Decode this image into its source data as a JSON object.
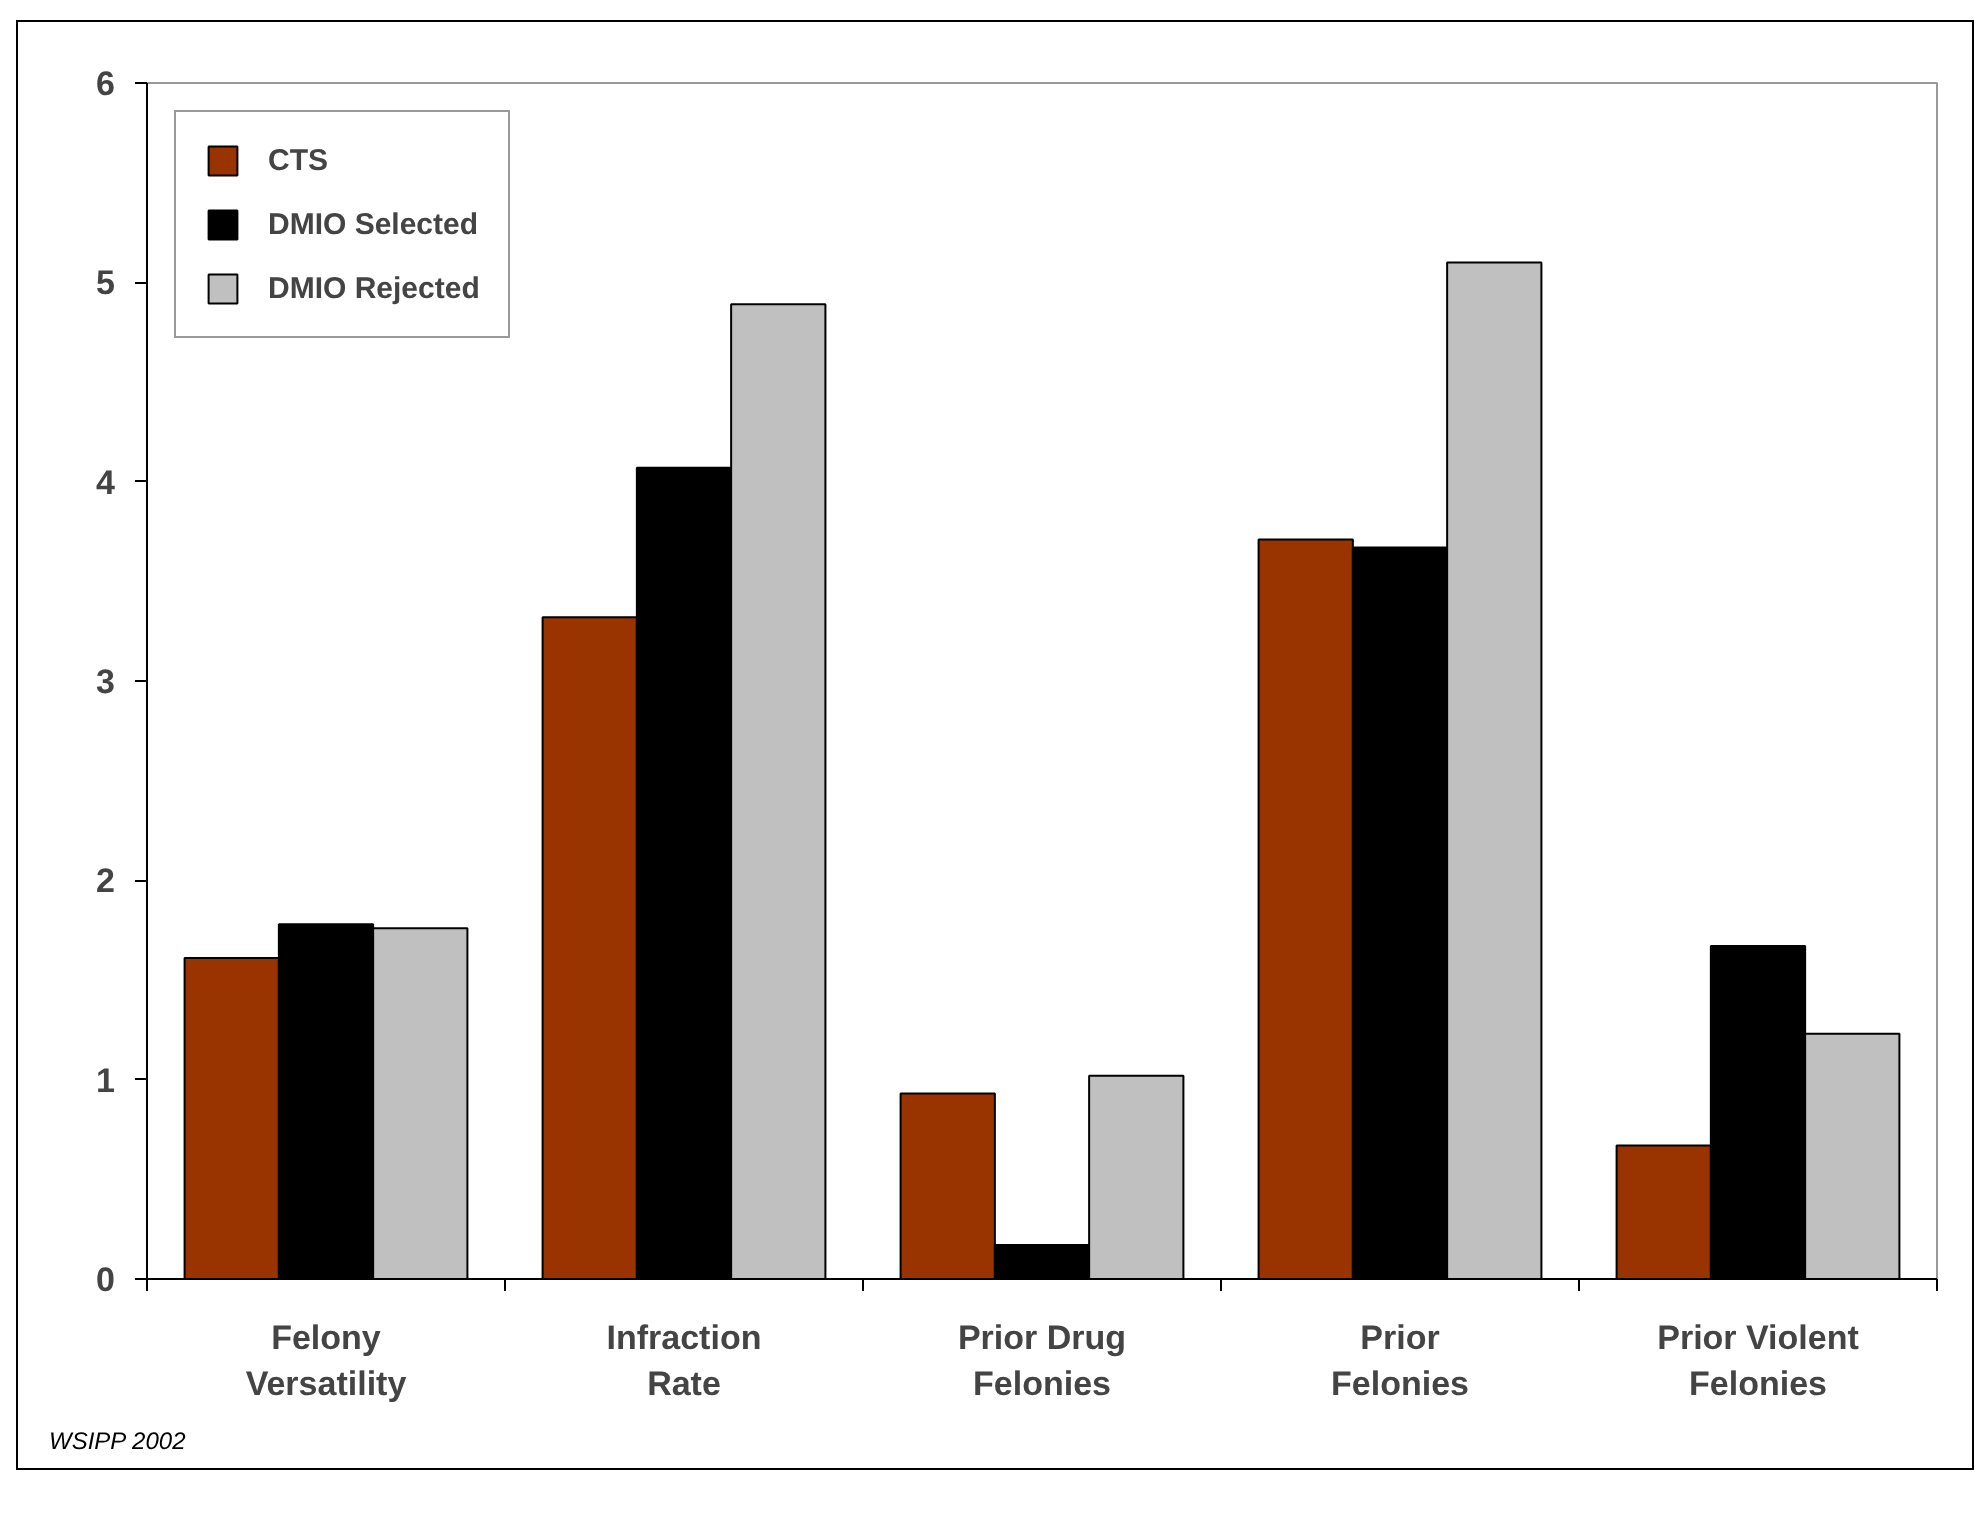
{
  "chart_data": {
    "type": "bar",
    "categories": [
      "Felony Versatility",
      "Infraction Rate",
      "Prior Drug Felonies",
      "Prior Felonies",
      "Prior Violent Felonies"
    ],
    "series": [
      {
        "name": "CTS",
        "color": "#993300",
        "values": [
          1.61,
          3.32,
          0.93,
          3.71,
          0.67
        ]
      },
      {
        "name": "DMIO Selected",
        "color": "#000000",
        "values": [
          1.78,
          4.07,
          0.17,
          3.67,
          1.67
        ]
      },
      {
        "name": "DMIO Rejected",
        "color": "#c0c0c0",
        "values": [
          1.76,
          4.89,
          1.02,
          5.1,
          1.23
        ]
      }
    ],
    "ylim": [
      0,
      6
    ],
    "yticks": [
      0,
      1,
      2,
      3,
      4,
      5,
      6
    ],
    "grid": false,
    "legend": "top left",
    "annotations": [
      "WSIPP 2002"
    ]
  }
}
